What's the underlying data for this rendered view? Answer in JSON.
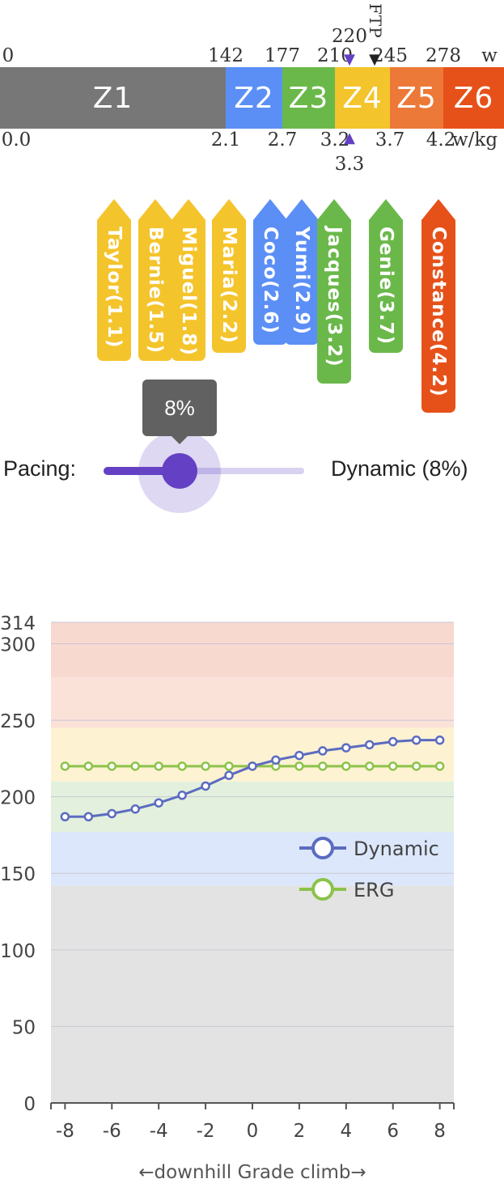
{
  "zones": {
    "power_ticks": [
      "0",
      "142",
      "177",
      "210",
      "245",
      "278",
      "w"
    ],
    "wkg_ticks": [
      "0.0",
      "2.1",
      "2.7",
      "3.2",
      "3.7",
      "4.2",
      "w/kg"
    ],
    "bands": [
      {
        "label": "Z1",
        "color": "#777777"
      },
      {
        "label": "Z2",
        "color": "#5b8ff6"
      },
      {
        "label": "Z3",
        "color": "#6ab84a"
      },
      {
        "label": "Z4",
        "color": "#f4c42c"
      },
      {
        "label": "Z5",
        "color": "#ec7938"
      },
      {
        "label": "Z6",
        "color": "#e6511a"
      }
    ],
    "target_power": "220",
    "ftp_label": "FTP",
    "target_wkg": "3.3",
    "marker_color": "#6440c4"
  },
  "riders": [
    {
      "label": "Taylor(1.1)",
      "color": "#f4c42c"
    },
    {
      "label": "Bernie(1.5)",
      "color": "#f4c42c"
    },
    {
      "label": "Miguel(1.8)",
      "color": "#f4c42c"
    },
    {
      "label": "Maria(2.2)",
      "color": "#f4c42c"
    },
    {
      "label": "Coco(2.6)",
      "color": "#5b8ff6"
    },
    {
      "label": "Yumi(2.9)",
      "color": "#5b8ff6"
    },
    {
      "label": "Jacques(3.2)",
      "color": "#6ab84a"
    },
    {
      "label": "Genie(3.7)",
      "color": "#6ab84a"
    },
    {
      "label": "Constance(4.2)",
      "color": "#e6511a"
    }
  ],
  "pacing": {
    "label": "Pacing:",
    "tooltip": "8%",
    "value_text": "Dynamic (8%)",
    "percent": 8,
    "accent": "#6440c4"
  },
  "chart_data": {
    "type": "line",
    "x": [
      -8,
      -7,
      -6,
      -5,
      -4,
      -3,
      -2,
      -1,
      0,
      1,
      2,
      3,
      4,
      5,
      6,
      7,
      8
    ],
    "xticks": [
      "-8",
      "-6",
      "-4",
      "-2",
      "0",
      "2",
      "4",
      "6",
      "8"
    ],
    "yticks": [
      "0",
      "50",
      "100",
      "150",
      "200",
      "250",
      "300",
      "314"
    ],
    "ylim": [
      0,
      314
    ],
    "xlim": [
      -8.6,
      8.6
    ],
    "xlabel": "←downhill   Grade    climb→",
    "ylabel": "",
    "grid": true,
    "legend_position": "right",
    "series": [
      {
        "name": "Dynamic",
        "color": "#5c6bc0",
        "values": [
          187,
          187,
          189,
          192,
          196,
          201,
          207,
          214,
          220,
          224,
          227,
          230,
          232,
          234,
          236,
          237,
          237
        ]
      },
      {
        "name": "ERG",
        "color": "#8bc34a",
        "values": [
          220,
          220,
          220,
          220,
          220,
          220,
          220,
          220,
          220,
          220,
          220,
          220,
          220,
          220,
          220,
          220,
          220
        ]
      }
    ],
    "bands": [
      {
        "from": 0,
        "to": 142,
        "color": "#e3e3e3"
      },
      {
        "from": 142,
        "to": 177,
        "color": "#dce7fb"
      },
      {
        "from": 177,
        "to": 210,
        "color": "#e2f0dd"
      },
      {
        "from": 210,
        "to": 245,
        "color": "#fdf2d2"
      },
      {
        "from": 245,
        "to": 278,
        "color": "#fbe2d9"
      },
      {
        "from": 278,
        "to": 314,
        "color": "#f8d9d0"
      }
    ]
  }
}
